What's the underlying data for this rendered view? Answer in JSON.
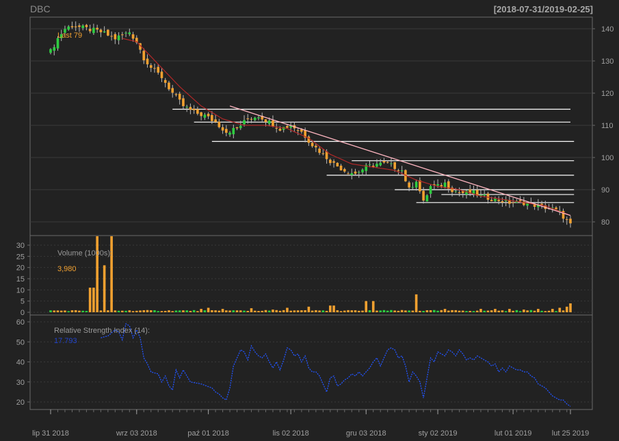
{
  "header": {
    "symbol": "DBC",
    "date_range": "[2018-07-31/2019-02-25]"
  },
  "colors": {
    "background": "#222222",
    "panel_border": "#6a6a6a",
    "grid": "#3a3a3a",
    "axis_text": "#a0a0a0",
    "up_candle": "#2ecc40",
    "down_candle": "#f0a030",
    "sma_line": "#b02828",
    "trend_line": "#ffb6c1",
    "level_lines": "#ffffff",
    "rsi_line": "#2255ff",
    "last_label": "#f0a030",
    "volume_label": "#f0a030",
    "rsi_value": "#2244cc"
  },
  "legends": {
    "last_label": "Last 79",
    "volume_label": "Volume (1000s):",
    "volume_value": "3,980",
    "rsi_label": "Relative Strength Index (14):",
    "rsi_value": "17.793"
  },
  "chart_data": {
    "type": "candlestick",
    "x_tick_labels": [
      "lip 31 2018",
      "wrz 03 2018",
      "paź 01 2018",
      "lis 02 2018",
      "gru 03 2018",
      "sty 02 2019",
      "lut 01 2019",
      "lut 25 2019"
    ],
    "x_tick_positions": [
      0,
      24,
      44,
      67,
      88,
      108,
      129,
      145
    ],
    "n_bars": 146,
    "price_panel": {
      "ylim": [
        75,
        142
      ],
      "y_ticks": [
        80,
        90,
        100,
        110,
        120,
        130,
        140
      ],
      "close_waypoints": [
        [
          0,
          133
        ],
        [
          2,
          137
        ],
        [
          4,
          140
        ],
        [
          6,
          141
        ],
        [
          10,
          140
        ],
        [
          14,
          139
        ],
        [
          18,
          137
        ],
        [
          22,
          139
        ],
        [
          24,
          136
        ],
        [
          26,
          131
        ],
        [
          28,
          128
        ],
        [
          31,
          125
        ],
        [
          34,
          120
        ],
        [
          37,
          116
        ],
        [
          40,
          114
        ],
        [
          43,
          113
        ],
        [
          46,
          111
        ],
        [
          49,
          108
        ],
        [
          52,
          109
        ],
        [
          55,
          112
        ],
        [
          58,
          113
        ],
        [
          61,
          111
        ],
        [
          64,
          109
        ],
        [
          67,
          110
        ],
        [
          70,
          108
        ],
        [
          73,
          104
        ],
        [
          76,
          101
        ],
        [
          79,
          98
        ],
        [
          82,
          96
        ],
        [
          85,
          95
        ],
        [
          88,
          97
        ],
        [
          91,
          98
        ],
        [
          94,
          98
        ],
        [
          96,
          97
        ],
        [
          98,
          96
        ],
        [
          100,
          90
        ],
        [
          102,
          93
        ],
        [
          104,
          86
        ],
        [
          106,
          91
        ],
        [
          108,
          91
        ],
        [
          110,
          92
        ],
        [
          112,
          90
        ],
        [
          114,
          89
        ],
        [
          116,
          89
        ],
        [
          118,
          89
        ],
        [
          120,
          88
        ],
        [
          124,
          87
        ],
        [
          128,
          86
        ],
        [
          132,
          86
        ],
        [
          136,
          85
        ],
        [
          140,
          84
        ],
        [
          142,
          83
        ],
        [
          145,
          79
        ]
      ],
      "sma_waypoints": [
        [
          20,
          137
        ],
        [
          24,
          136
        ],
        [
          30,
          129
        ],
        [
          36,
          122
        ],
        [
          42,
          116
        ],
        [
          48,
          112
        ],
        [
          54,
          110
        ],
        [
          60,
          110
        ],
        [
          66,
          109
        ],
        [
          72,
          106
        ],
        [
          78,
          101
        ],
        [
          84,
          98
        ],
        [
          90,
          97
        ],
        [
          96,
          96
        ],
        [
          102,
          93
        ],
        [
          108,
          91
        ],
        [
          114,
          90
        ],
        [
          120,
          88
        ],
        [
          126,
          87
        ],
        [
          132,
          86
        ],
        [
          138,
          85
        ],
        [
          145,
          82
        ]
      ],
      "trend_line": [
        [
          50,
          116
        ],
        [
          145,
          82
        ]
      ],
      "horizontal_levels": [
        {
          "value": 115,
          "from": 34,
          "to": 145
        },
        {
          "value": 111,
          "from": 40,
          "to": 145
        },
        {
          "value": 105,
          "from": 45,
          "to": 146
        },
        {
          "value": 99,
          "from": 84,
          "to": 146
        },
        {
          "value": 94.5,
          "from": 77,
          "to": 146
        },
        {
          "value": 90,
          "from": 96,
          "to": 146
        },
        {
          "value": 88.5,
          "from": 109,
          "to": 146
        },
        {
          "value": 86,
          "from": 102,
          "to": 146
        }
      ]
    },
    "volume_panel": {
      "ylabel": "Volume (1000s)",
      "ylim": [
        0,
        35
      ],
      "y_ticks": [
        0,
        5,
        10,
        15,
        20,
        25,
        30
      ],
      "spikes": [
        [
          11,
          11
        ],
        [
          12,
          11
        ],
        [
          13,
          34
        ],
        [
          15,
          21
        ],
        [
          17,
          34
        ],
        [
          42,
          1.5
        ],
        [
          44,
          2
        ],
        [
          48,
          1.5
        ],
        [
          56,
          1.8
        ],
        [
          62,
          1.2
        ],
        [
          66,
          2
        ],
        [
          72,
          2.5
        ],
        [
          78,
          3
        ],
        [
          79,
          3
        ],
        [
          88,
          5
        ],
        [
          90,
          5
        ],
        [
          102,
          8
        ],
        [
          110,
          1.5
        ],
        [
          120,
          1.5
        ],
        [
          124,
          1.5
        ],
        [
          128,
          1.5
        ],
        [
          132,
          1.2
        ],
        [
          136,
          1.5
        ],
        [
          140,
          1.5
        ],
        [
          142,
          2
        ],
        [
          144,
          2.5
        ],
        [
          145,
          3.98
        ]
      ],
      "base": 0.5
    },
    "rsi_panel": {
      "ylabel": "Relative Strength Index (14)",
      "ylim": [
        15,
        62
      ],
      "y_ticks": [
        20,
        30,
        40,
        50,
        60
      ],
      "start_bar": 14,
      "waypoints": [
        [
          14,
          52
        ],
        [
          16,
          53
        ],
        [
          18,
          56
        ],
        [
          19,
          55
        ],
        [
          20,
          51
        ],
        [
          21,
          59
        ],
        [
          22,
          58
        ],
        [
          23,
          52
        ],
        [
          24,
          56
        ],
        [
          25,
          52
        ],
        [
          26,
          42
        ],
        [
          27,
          39
        ],
        [
          28,
          35
        ],
        [
          30,
          34
        ],
        [
          31,
          30
        ],
        [
          32,
          33
        ],
        [
          33,
          28
        ],
        [
          34,
          26
        ],
        [
          35,
          36
        ],
        [
          36,
          32
        ],
        [
          37,
          36
        ],
        [
          38,
          33
        ],
        [
          39,
          30
        ],
        [
          42,
          29
        ],
        [
          45,
          27
        ],
        [
          46,
          25
        ],
        [
          47,
          24
        ],
        [
          48,
          22
        ],
        [
          49,
          21
        ],
        [
          50,
          27
        ],
        [
          51,
          38
        ],
        [
          52,
          42
        ],
        [
          53,
          46
        ],
        [
          54,
          45
        ],
        [
          55,
          41
        ],
        [
          56,
          48
        ],
        [
          57,
          45
        ],
        [
          58,
          43
        ],
        [
          59,
          42
        ],
        [
          60,
          44
        ],
        [
          61,
          40
        ],
        [
          62,
          37
        ],
        [
          63,
          40
        ],
        [
          64,
          36
        ],
        [
          65,
          41
        ],
        [
          66,
          47
        ],
        [
          67,
          46
        ],
        [
          68,
          43
        ],
        [
          69,
          44
        ],
        [
          70,
          40
        ],
        [
          71,
          43
        ],
        [
          72,
          37
        ],
        [
          73,
          35
        ],
        [
          74,
          35
        ],
        [
          75,
          33
        ],
        [
          76,
          29
        ],
        [
          77,
          25
        ],
        [
          78,
          32
        ],
        [
          79,
          33
        ],
        [
          80,
          28
        ],
        [
          81,
          29
        ],
        [
          82,
          31
        ],
        [
          83,
          32
        ],
        [
          84,
          34
        ],
        [
          85,
          33
        ],
        [
          86,
          35
        ],
        [
          87,
          33
        ],
        [
          88,
          35
        ],
        [
          89,
          37
        ],
        [
          90,
          40
        ],
        [
          91,
          42
        ],
        [
          92,
          38
        ],
        [
          93,
          42
        ],
        [
          94,
          46
        ],
        [
          95,
          47
        ],
        [
          96,
          46
        ],
        [
          97,
          42
        ],
        [
          98,
          43
        ],
        [
          99,
          38
        ],
        [
          100,
          30
        ],
        [
          101,
          35
        ],
        [
          102,
          33
        ],
        [
          103,
          30
        ],
        [
          104,
          22
        ],
        [
          105,
          32
        ],
        [
          106,
          42
        ],
        [
          107,
          40
        ],
        [
          108,
          45
        ],
        [
          109,
          44
        ],
        [
          110,
          43
        ],
        [
          111,
          46
        ],
        [
          112,
          45
        ],
        [
          113,
          43
        ],
        [
          114,
          46
        ],
        [
          115,
          44
        ],
        [
          116,
          41
        ],
        [
          117,
          42
        ],
        [
          118,
          41
        ],
        [
          119,
          43
        ],
        [
          120,
          42
        ],
        [
          121,
          41
        ],
        [
          122,
          40
        ],
        [
          123,
          38
        ],
        [
          124,
          39
        ],
        [
          125,
          35
        ],
        [
          126,
          37
        ],
        [
          127,
          35
        ],
        [
          128,
          38
        ],
        [
          129,
          37
        ],
        [
          130,
          36
        ],
        [
          131,
          36
        ],
        [
          132,
          35
        ],
        [
          133,
          35
        ],
        [
          134,
          33
        ],
        [
          135,
          32
        ],
        [
          136,
          29
        ],
        [
          137,
          28
        ],
        [
          138,
          27
        ],
        [
          139,
          25
        ],
        [
          140,
          23
        ],
        [
          141,
          22
        ],
        [
          142,
          21
        ],
        [
          143,
          21
        ],
        [
          144,
          19
        ],
        [
          145,
          17.8
        ]
      ]
    }
  }
}
